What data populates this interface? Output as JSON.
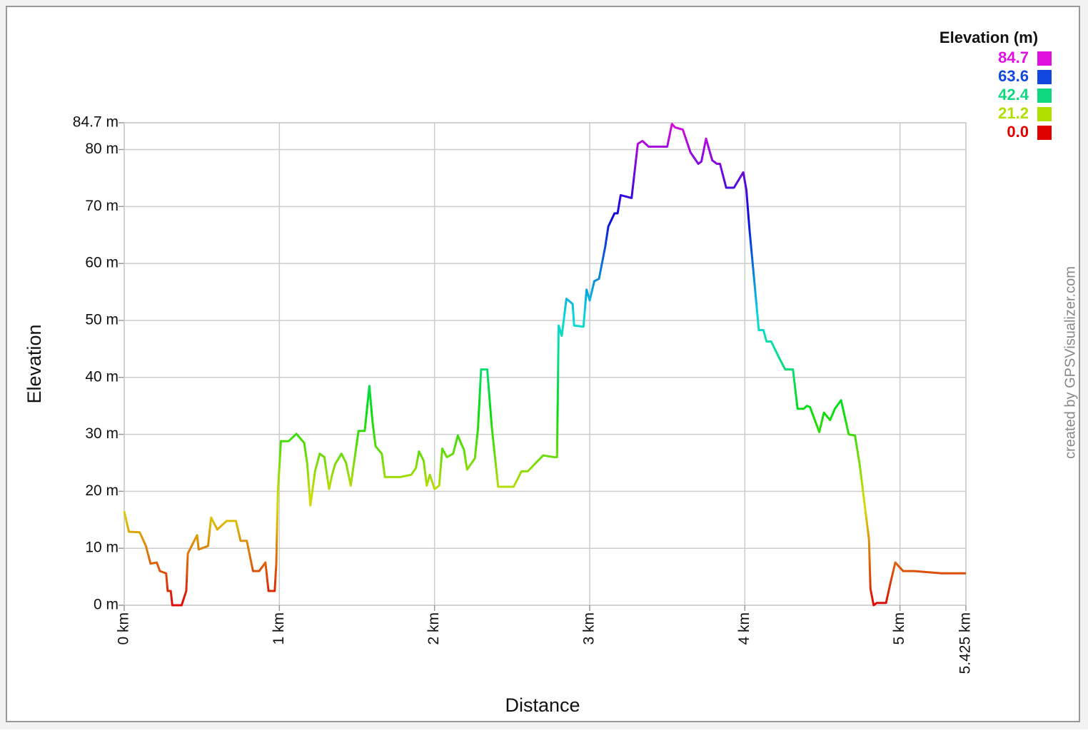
{
  "chart_data": {
    "type": "line",
    "x_label": "Distance",
    "y_label": "Elevation",
    "credit": "created by GPSVisualizer.com",
    "xlim": [
      0,
      5.425
    ],
    "ylim": [
      0,
      84.7
    ],
    "xticks": [
      {
        "value": 0,
        "label": "0 km"
      },
      {
        "value": 1,
        "label": "1 km"
      },
      {
        "value": 2,
        "label": "2 km"
      },
      {
        "value": 3,
        "label": "3 km"
      },
      {
        "value": 4,
        "label": "4 km"
      },
      {
        "value": 5,
        "label": "5 km"
      },
      {
        "value": 5.425,
        "label": "5.425 km"
      }
    ],
    "yticks": [
      {
        "value": 0,
        "label": "0 m"
      },
      {
        "value": 10,
        "label": "10 m"
      },
      {
        "value": 20,
        "label": "20 m"
      },
      {
        "value": 30,
        "label": "30 m"
      },
      {
        "value": 40,
        "label": "40 m"
      },
      {
        "value": 50,
        "label": "50 m"
      },
      {
        "value": 60,
        "label": "60 m"
      },
      {
        "value": 70,
        "label": "70 m"
      },
      {
        "value": 80,
        "label": "80 m"
      },
      {
        "value": 84.7,
        "label": "84.7 m"
      }
    ],
    "grid": true,
    "legend": {
      "title": "Elevation (m)",
      "position": "top-right",
      "items": [
        {
          "value": 84.7,
          "label": "84.7",
          "color": "#e010e0"
        },
        {
          "value": 63.6,
          "label": "63.6",
          "color": "#1048e0"
        },
        {
          "value": 42.4,
          "label": "42.4",
          "color": "#10d880"
        },
        {
          "value": 21.2,
          "label": "21.2",
          "color": "#b0e000"
        },
        {
          "value": 0,
          "label": "0.0",
          "color": "#e00000"
        }
      ]
    },
    "x": [
      0,
      0.03,
      0.1,
      0.14,
      0.17,
      0.21,
      0.23,
      0.27,
      0.28,
      0.3,
      0.31,
      0.37,
      0.4,
      0.41,
      0.47,
      0.48,
      0.54,
      0.56,
      0.6,
      0.66,
      0.72,
      0.75,
      0.79,
      0.83,
      0.87,
      0.91,
      0.93,
      0.97,
      0.98,
      0.99,
      1.01,
      1.06,
      1.11,
      1.16,
      1.18,
      1.2,
      1.23,
      1.26,
      1.29,
      1.32,
      1.34,
      1.36,
      1.4,
      1.43,
      1.46,
      1.51,
      1.55,
      1.58,
      1.6,
      1.62,
      1.66,
      1.68,
      1.78,
      1.85,
      1.88,
      1.9,
      1.93,
      1.95,
      1.97,
      2.0,
      2.03,
      2.05,
      2.08,
      2.12,
      2.15,
      2.17,
      2.19,
      2.21,
      2.26,
      2.28,
      2.3,
      2.34,
      2.37,
      2.41,
      2.51,
      2.56,
      2.6,
      2.7,
      2.77,
      2.79,
      2.8,
      2.82,
      2.85,
      2.89,
      2.9,
      2.96,
      2.98,
      3.0,
      3.03,
      3.06,
      3.1,
      3.12,
      3.16,
      3.18,
      3.2,
      3.27,
      3.31,
      3.34,
      3.38,
      3.5,
      3.53,
      3.55,
      3.6,
      3.65,
      3.7,
      3.72,
      3.75,
      3.79,
      3.82,
      3.84,
      3.88,
      3.93,
      3.99,
      4.01,
      4.03,
      4.06,
      4.09,
      4.12,
      4.14,
      4.17,
      4.22,
      4.26,
      4.31,
      4.34,
      4.38,
      4.4,
      4.42,
      4.48,
      4.51,
      4.55,
      4.58,
      4.62,
      4.67,
      4.71,
      4.74,
      4.78,
      4.8,
      4.81,
      4.83,
      4.85,
      4.91,
      4.94,
      4.97,
      5.02,
      5.09,
      5.27,
      5.425
    ],
    "values": [
      16.5,
      12.9,
      12.8,
      10.4,
      7.3,
      7.5,
      6.0,
      5.6,
      2.5,
      2.5,
      0,
      0,
      2.5,
      9.1,
      12.3,
      9.8,
      10.4,
      15.4,
      13.3,
      14.8,
      14.8,
      11.3,
      11.3,
      6.0,
      6.0,
      7.5,
      2.5,
      2.5,
      7.3,
      19.8,
      28.8,
      28.8,
      30.1,
      28.5,
      24.8,
      17.5,
      23.5,
      26.6,
      26.0,
      20.4,
      22.9,
      24.8,
      26.6,
      25.0,
      21.0,
      30.6,
      30.6,
      38.5,
      32.3,
      27.9,
      26.6,
      22.5,
      22.5,
      22.9,
      24.1,
      27.0,
      25.4,
      21.0,
      22.9,
      20.4,
      21.0,
      27.5,
      26.0,
      26.6,
      29.8,
      28.5,
      27.3,
      23.8,
      25.8,
      31.0,
      41.4,
      41.4,
      31.0,
      20.8,
      20.8,
      23.5,
      23.5,
      26.3,
      26.0,
      26.0,
      49.1,
      47.3,
      53.8,
      52.9,
      49.1,
      48.9,
      55.4,
      53.5,
      56.9,
      57.3,
      62.9,
      66.5,
      68.8,
      68.8,
      72.0,
      71.5,
      81.0,
      81.5,
      80.5,
      80.5,
      84.5,
      83.9,
      83.5,
      79.5,
      77.5,
      77.9,
      81.9,
      78.1,
      77.5,
      77.5,
      73.3,
      73.3,
      76.0,
      72.9,
      66.0,
      57.3,
      48.3,
      48.3,
      46.3,
      46.3,
      43.5,
      41.4,
      41.4,
      34.5,
      34.5,
      35.0,
      34.8,
      30.4,
      33.8,
      32.5,
      34.5,
      36.0,
      30.0,
      29.8,
      24.8,
      16.0,
      11.6,
      2.9,
      0,
      0.4,
      0.4,
      4.1,
      7.5,
      6.0,
      6.0,
      5.6,
      5.6
    ]
  }
}
